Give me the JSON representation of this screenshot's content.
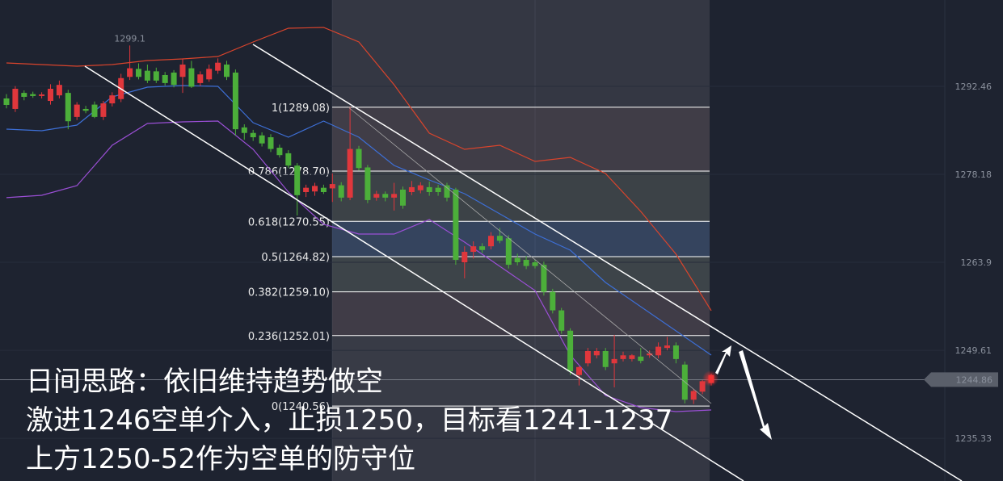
{
  "chart_data": {
    "type": "candlestick",
    "up_color": "#e0373c",
    "down_color": "#4caf3a",
    "ylim": [
      1228.4,
      1306.48
    ],
    "yticks": [
      1292.46,
      1278.18,
      1263.9,
      1249.61,
      1235.33
    ],
    "open": [
      1290.5,
      1288.8,
      1291.4,
      1291.2,
      1290.9,
      1290.1,
      1291.0,
      1291.4,
      1287.5,
      1288.8,
      1289.5,
      1287.5,
      1289.7,
      1290.4,
      1294.0,
      1295.3,
      1295.0,
      1294.9,
      1294.3,
      1294.7,
      1294.0,
      1295.4,
      1293.0,
      1293.6,
      1295.0,
      1296.0,
      1294.7,
      1285.8,
      1284.9,
      1284.5,
      1284.2,
      1282.5,
      1281.6,
      1279.6,
      1275.3,
      1275.4,
      1276.0,
      1275.9,
      1276.4,
      1274.4,
      1282.3,
      1279.3,
      1274.4,
      1275.0,
      1274.4,
      1275.7,
      1275.3,
      1275.6,
      1276.1,
      1276.0,
      1276.4,
      1275.7,
      1263.9,
      1265.6,
      1266.5,
      1266.5,
      1268.2,
      1267.8,
      1264.6,
      1264.3,
      1263.9,
      1263.5,
      1259.1,
      1256.1,
      1252.8,
      1245.6,
      1247.5,
      1248.8,
      1249.5,
      1247.5,
      1248.2,
      1248.2,
      1248.6,
      1248.8,
      1248.8,
      1250.0,
      1250.4,
      1247.3,
      1241.6,
      1242.9,
      1244.3
    ],
    "high": [
      1291.2,
      1292.5,
      1291.8,
      1291.6,
      1291.5,
      1292.8,
      1293.4,
      1291.9,
      1289.9,
      1289.3,
      1290.0,
      1290.1,
      1291.5,
      1294.5,
      1299.1,
      1296.2,
      1296.0,
      1295.5,
      1294.8,
      1295.1,
      1297.0,
      1296.6,
      1294.9,
      1296.0,
      1297.0,
      1296.6,
      1295.2,
      1286.3,
      1285.4,
      1285.0,
      1284.7,
      1283.0,
      1282.1,
      1280.0,
      1276.5,
      1276.8,
      1276.5,
      1278.3,
      1276.9,
      1289.1,
      1282.8,
      1279.7,
      1275.5,
      1275.4,
      1276.8,
      1276.2,
      1277.1,
      1276.9,
      1277.0,
      1276.5,
      1276.8,
      1276.0,
      1266.5,
      1267.3,
      1267.0,
      1268.8,
      1269.5,
      1268.3,
      1265.3,
      1264.9,
      1264.3,
      1264.0,
      1259.6,
      1256.5,
      1253.2,
      1247.0,
      1250.0,
      1250.0,
      1250.0,
      1252.1,
      1249.4,
      1249.0,
      1250.0,
      1249.6,
      1250.9,
      1251.8,
      1250.9,
      1247.8,
      1243.3,
      1244.8,
      1245.8
    ],
    "low": [
      1288.9,
      1288.3,
      1290.2,
      1290.6,
      1290.5,
      1289.5,
      1290.5,
      1285.5,
      1287.0,
      1288.1,
      1287.3,
      1287.0,
      1289.2,
      1289.9,
      1293.5,
      1293.6,
      1293.0,
      1293.0,
      1292.6,
      1292.3,
      1291.4,
      1292.2,
      1292.5,
      1293.2,
      1294.5,
      1293.5,
      1284.5,
      1283.8,
      1283.6,
      1282.7,
      1281.8,
      1280.9,
      1279.2,
      1271.5,
      1274.5,
      1274.7,
      1275.0,
      1273.7,
      1273.8,
      1274.0,
      1278.8,
      1273.5,
      1273.9,
      1273.8,
      1272.3,
      1272.6,
      1274.8,
      1275.1,
      1274.7,
      1274.7,
      1273.8,
      1263.5,
      1261.3,
      1264.5,
      1265.4,
      1266.0,
      1267.0,
      1262.9,
      1263.4,
      1262.8,
      1262.9,
      1258.5,
      1255.6,
      1252.3,
      1245.6,
      1243.9,
      1247.0,
      1248.3,
      1246.4,
      1243.6,
      1247.8,
      1247.8,
      1247.5,
      1248.4,
      1248.3,
      1249.6,
      1247.5,
      1241.0,
      1240.9,
      1242.5,
      1243.9
    ],
    "close": [
      1289.45,
      1292.07,
      1290.76,
      1290.9,
      1291.15,
      1292.07,
      1292.7,
      1286.8,
      1289.5,
      1288.5,
      1287.5,
      1289.7,
      1291.0,
      1293.8,
      1295.4,
      1294.0,
      1293.4,
      1293.4,
      1293.0,
      1292.7,
      1296.0,
      1292.4,
      1294.4,
      1295.3,
      1296.3,
      1294.0,
      1285.5,
      1284.9,
      1284.2,
      1283.2,
      1282.3,
      1281.3,
      1279.6,
      1274.8,
      1276.0,
      1276.3,
      1275.3,
      1276.6,
      1274.4,
      1282.3,
      1279.2,
      1274.0,
      1275.0,
      1274.4,
      1275.0,
      1273.1,
      1276.1,
      1276.4,
      1275.3,
      1275.3,
      1274.4,
      1264.3,
      1265.6,
      1266.5,
      1265.9,
      1268.2,
      1267.4,
      1263.5,
      1263.9,
      1263.3,
      1263.3,
      1259.1,
      1256.1,
      1252.8,
      1246.2,
      1246.9,
      1249.5,
      1249.5,
      1246.9,
      1248.2,
      1248.8,
      1248.8,
      1247.9,
      1249.1,
      1250.2,
      1250.4,
      1248.2,
      1241.6,
      1243.0,
      1244.6,
      1245.6
    ],
    "series": [
      {
        "color": "#d9442c",
        "x": [
          0,
          4,
          8,
          12,
          16,
          20,
          24,
          28,
          32,
          36,
          40,
          44,
          48,
          52,
          56,
          60,
          64,
          68,
          72,
          76,
          80
        ],
        "values": [
          1296.26,
          1296.0,
          1295.74,
          1296.0,
          1296.66,
          1296.92,
          1297.31,
          1299.67,
          1301.9,
          1302.03,
          1299.67,
          1292.73,
          1284.87,
          1282.25,
          1282.9,
          1280.28,
          1280.94,
          1278.32,
          1272.16,
          1265.22,
          1256.05
        ]
      },
      {
        "color": "#3d6fd6",
        "x": [
          0,
          4,
          8,
          12,
          16,
          20,
          24,
          28,
          32,
          36,
          40,
          44,
          48,
          52,
          56,
          60,
          64,
          68,
          72,
          76,
          80
        ],
        "values": [
          1285.52,
          1285.26,
          1286.18,
          1290.76,
          1292.33,
          1292.59,
          1292.46,
          1286.57,
          1284.21,
          1286.83,
          1284.21,
          1279.62,
          1277.27,
          1275.04,
          1271.76,
          1268.49,
          1265.87,
          1260.63,
          1256.7,
          1252.77,
          1248.84
        ]
      },
      {
        "color": "#9b4fd6",
        "x": [
          0,
          4,
          8,
          12,
          16,
          20,
          24,
          28,
          32,
          36,
          40,
          44,
          48,
          52,
          56,
          60,
          64,
          68,
          72,
          76,
          80
        ],
        "values": [
          1274.39,
          1274.78,
          1276.35,
          1282.9,
          1286.44,
          1286.7,
          1286.83,
          1282.25,
          1275.3,
          1270.06,
          1268.49,
          1268.49,
          1270.85,
          1267.18,
          1263.25,
          1259.32,
          1248.84,
          1242.29,
          1240.32,
          1239.67,
          1239.93
        ]
      }
    ],
    "fib_levels": [
      {
        "value": 1289.08,
        "label": "1(1289.08)"
      },
      {
        "value": 1278.7,
        "label": "0.786(1278.70)"
      },
      {
        "value": 1270.55,
        "label": "0.618(1270.55)"
      },
      {
        "value": 1264.82,
        "label": "0.5(1264.82)"
      },
      {
        "value": 1259.1,
        "label": "0.382(1259.10)"
      },
      {
        "value": 1252.01,
        "label": "0.236(1252.01)"
      },
      {
        "value": 1240.56,
        "label": "0(1240.56)"
      }
    ],
    "current_price": 1244.86,
    "annotations": [
      "日间思路：依旧维持趋势做空",
      "激进1246空单介入，止损1250，目标看1241-1237",
      "上方1250-52作为空单的防守位"
    ]
  }
}
